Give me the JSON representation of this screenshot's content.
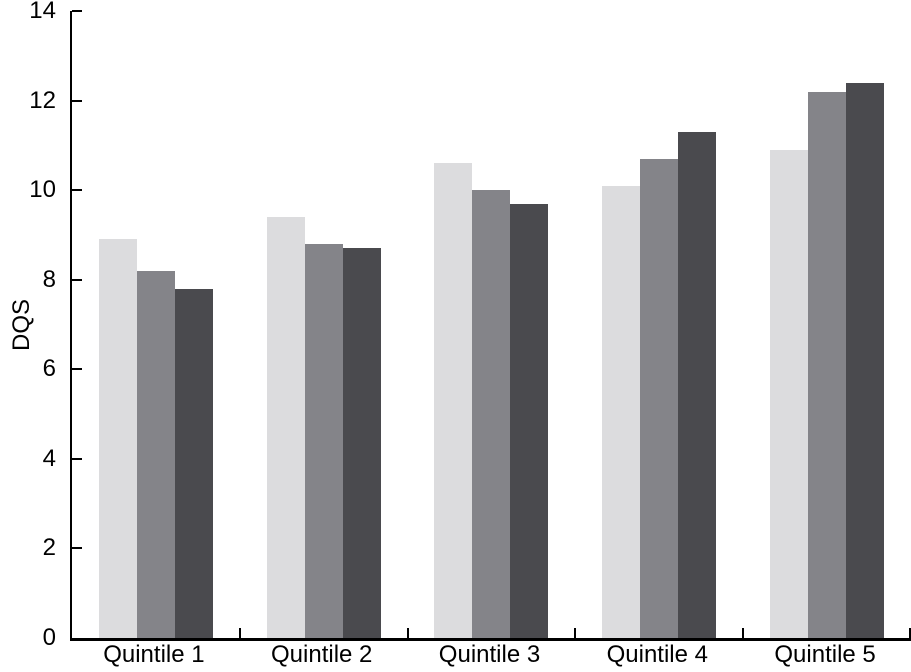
{
  "figure": {
    "background": "#ffffff",
    "axis_color": "#000000",
    "text_color": "#000000"
  },
  "chart_data": {
    "type": "bar",
    "title": "",
    "xlabel": "",
    "ylabel": "DQS",
    "ylim": [
      0,
      14
    ],
    "yticks": [
      0,
      2,
      4,
      6,
      8,
      10,
      12,
      14
    ],
    "categories": [
      "Quintile 1",
      "Quintile 2",
      "Quintile 3",
      "Quintile 4",
      "Quintile 5"
    ],
    "series": [
      {
        "name": "light-gray-series",
        "color": "#dcdcde",
        "values": [
          8.9,
          9.4,
          10.6,
          10.1,
          10.9
        ]
      },
      {
        "name": "medium-gray-series",
        "color": "#848489",
        "values": [
          8.2,
          8.8,
          10.0,
          10.7,
          12.2
        ]
      },
      {
        "name": "dark-gray-series",
        "color": "#4a4a4e",
        "values": [
          7.8,
          8.7,
          9.7,
          11.3,
          12.4
        ]
      }
    ],
    "legend": {
      "visible": false
    },
    "grid": false
  }
}
